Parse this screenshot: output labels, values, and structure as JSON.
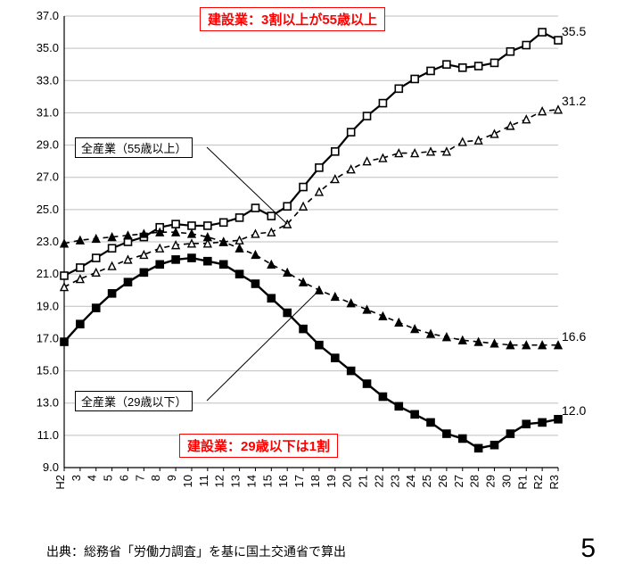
{
  "chart": {
    "type": "line",
    "background_color": "#ffffff",
    "grid_color": "#bfbfbf",
    "axis_color": "#000000",
    "ylim": [
      9.0,
      37.0
    ],
    "ytick_step": 2.0,
    "yticks": [
      "9.0",
      "11.0",
      "13.0",
      "15.0",
      "17.0",
      "19.0",
      "21.0",
      "23.0",
      "25.0",
      "27.0",
      "29.0",
      "31.0",
      "33.0",
      "35.0",
      "37.0"
    ],
    "categories": [
      "H2",
      "3",
      "4",
      "5",
      "6",
      "7",
      "8",
      "9",
      "10",
      "11",
      "12",
      "13",
      "14",
      "15",
      "16",
      "17",
      "18",
      "19",
      "20",
      "21",
      "22",
      "23",
      "24",
      "25",
      "26",
      "27",
      "28",
      "29",
      "30",
      "R1",
      "R2",
      "R3"
    ],
    "tick_fontsize": 13,
    "series": [
      {
        "id": "construction_55plus",
        "label_key": "callouts.top",
        "marker": "square-open",
        "line_dash": "solid",
        "line_width": 2.2,
        "color": "#000000",
        "fill": "#ffffff",
        "marker_size": 8,
        "end_label_key": "end_labels.construction_55plus",
        "values": [
          20.9,
          21.4,
          22.0,
          22.6,
          23.0,
          23.3,
          23.9,
          24.1,
          24.0,
          24.0,
          24.2,
          24.5,
          25.1,
          24.6,
          25.2,
          26.4,
          27.6,
          28.6,
          29.8,
          30.8,
          31.6,
          32.5,
          33.1,
          33.6,
          34.0,
          33.8,
          33.9,
          34.1,
          34.8,
          35.2,
          36.0,
          35.5
        ]
      },
      {
        "id": "all_55plus",
        "label_key": "labels.all_55plus",
        "marker": "triangle-open",
        "line_dash": "dash",
        "line_width": 1.6,
        "color": "#000000",
        "fill": "#ffffff",
        "marker_size": 8,
        "end_label_key": "end_labels.all_55plus",
        "values": [
          20.2,
          20.7,
          21.1,
          21.5,
          21.9,
          22.2,
          22.6,
          22.8,
          22.9,
          22.9,
          23.0,
          23.1,
          23.5,
          23.6,
          24.1,
          25.2,
          26.1,
          26.9,
          27.5,
          28.0,
          28.2,
          28.5,
          28.5,
          28.6,
          28.6,
          29.2,
          29.3,
          29.7,
          30.2,
          30.6,
          31.1,
          31.2
        ]
      },
      {
        "id": "all_29minus",
        "label_key": "labels.all_29minus",
        "marker": "triangle-solid",
        "line_dash": "dash",
        "line_width": 1.6,
        "color": "#000000",
        "fill": "#000000",
        "marker_size": 8,
        "end_label_key": "end_labels.all_29minus",
        "values": [
          22.9,
          23.1,
          23.2,
          23.3,
          23.4,
          23.5,
          23.6,
          23.6,
          23.5,
          23.3,
          23.0,
          22.6,
          22.2,
          21.6,
          21.1,
          20.5,
          20.0,
          19.6,
          19.2,
          18.8,
          18.4,
          18.0,
          17.6,
          17.3,
          17.1,
          16.9,
          16.8,
          16.7,
          16.6,
          16.6,
          16.6,
          16.6
        ]
      },
      {
        "id": "construction_29minus",
        "label_key": "callouts.bottom",
        "marker": "square-solid",
        "line_dash": "solid",
        "line_width": 2.4,
        "color": "#000000",
        "fill": "#000000",
        "marker_size": 8,
        "end_label_key": "end_labels.construction_29minus",
        "values": [
          16.8,
          17.9,
          18.9,
          19.8,
          20.5,
          21.1,
          21.6,
          21.9,
          22.0,
          21.8,
          21.6,
          21.0,
          20.4,
          19.5,
          18.6,
          17.6,
          16.6,
          15.8,
          15.0,
          14.2,
          13.4,
          12.8,
          12.3,
          11.8,
          11.1,
          10.8,
          10.2,
          10.4,
          11.1,
          11.7,
          11.8,
          12.0
        ]
      }
    ],
    "leader_lines": [
      {
        "from_series": "all_55plus",
        "from_index": 14,
        "to_box": "all_55plus"
      },
      {
        "from_series": "all_29minus",
        "from_index": 16,
        "to_box": "all_29minus"
      }
    ]
  },
  "callouts": {
    "top": "建設業：3割以上が55歳以上",
    "bottom": "建設業：29歳以下は1割"
  },
  "labels": {
    "all_55plus": "全産業（55歳以上）",
    "all_29minus": "全産業（29歳以下）"
  },
  "end_labels": {
    "construction_55plus": "35.5",
    "all_55plus": "31.2",
    "all_29minus": "16.6",
    "construction_29minus": "12.0"
  },
  "source_text": "出典：総務省「労働力調査」を基に国土交通省で算出",
  "page_number": "5"
}
